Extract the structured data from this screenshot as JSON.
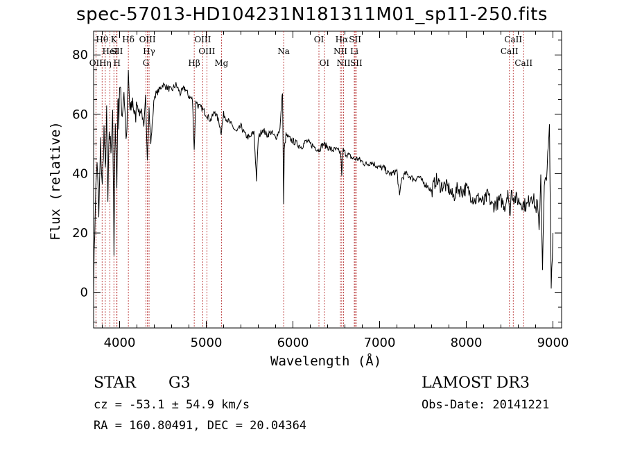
{
  "chart_data": {
    "type": "line",
    "title": "spec-57013-HD104231N181311M01_sp11-250.fits",
    "xlabel": "Wavelength (Å)",
    "ylabel": "Flux (relative)",
    "xlim": [
      3700,
      9100
    ],
    "ylim": [
      -12,
      88
    ],
    "xticks": [
      4000,
      5000,
      6000,
      7000,
      8000,
      9000
    ],
    "yticks": [
      0,
      20,
      40,
      60,
      80
    ],
    "series": [
      {
        "name": "flux",
        "x": [
          3700,
          3720,
          3740,
          3760,
          3780,
          3800,
          3820,
          3835,
          3850,
          3865,
          3880,
          3900,
          3920,
          3935,
          3950,
          3968,
          3980,
          3990,
          4000,
          4030,
          4050,
          4080,
          4101,
          4120,
          4150,
          4180,
          4200,
          4230,
          4250,
          4280,
          4300,
          4320,
          4340,
          4360,
          4400,
          4450,
          4500,
          4550,
          4600,
          4650,
          4700,
          4750,
          4800,
          4840,
          4861,
          4880,
          4900,
          4950,
          5000,
          5050,
          5100,
          5150,
          5172,
          5200,
          5250,
          5300,
          5350,
          5400,
          5450,
          5500,
          5550,
          5580,
          5600,
          5650,
          5700,
          5750,
          5800,
          5850,
          5880,
          5893,
          5900,
          5920,
          5950,
          6000,
          6050,
          6100,
          6150,
          6200,
          6250,
          6300,
          6350,
          6400,
          6450,
          6500,
          6550,
          6563,
          6580,
          6600,
          6650,
          6700,
          6750,
          6800,
          6850,
          6900,
          6950,
          7000,
          7050,
          7100,
          7150,
          7200,
          7230,
          7250,
          7300,
          7350,
          7400,
          7450,
          7500,
          7550,
          7600,
          7650,
          7700,
          7750,
          7800,
          7850,
          7900,
          7950,
          8000,
          8050,
          8100,
          8150,
          8200,
          8250,
          8300,
          8350,
          8400,
          8450,
          8480,
          8500,
          8520,
          8550,
          8600,
          8650,
          8700,
          8750,
          8780,
          8800,
          8820,
          8840,
          8860,
          8880,
          8900,
          8920,
          8940,
          8960,
          8980,
          9000
        ],
        "y": [
          2,
          30,
          45,
          25,
          50,
          35,
          55,
          40,
          60,
          30,
          55,
          48,
          62,
          12,
          60,
          35,
          67,
          58,
          70,
          60,
          68,
          50,
          74,
          60,
          65,
          58,
          64,
          60,
          62,
          55,
          66,
          45,
          62,
          50,
          66,
          68,
          70,
          69,
          68,
          70,
          67,
          69,
          66,
          65,
          48,
          65,
          63,
          62,
          60,
          58,
          61,
          57,
          54,
          60,
          58,
          56,
          54,
          56,
          53,
          52,
          54,
          38,
          52,
          55,
          53,
          54,
          52,
          55,
          68,
          30,
          48,
          53,
          52,
          51,
          50,
          49,
          51,
          50,
          49,
          48,
          50,
          49,
          48,
          48,
          47,
          40,
          48,
          47,
          46,
          45,
          45,
          44,
          43,
          44,
          43,
          42,
          42,
          40,
          40,
          41,
          32,
          38,
          40,
          39,
          38,
          39,
          37,
          36,
          34,
          38,
          36,
          36,
          35,
          32,
          35,
          34,
          35,
          33,
          31,
          32,
          30,
          33,
          29,
          30,
          31,
          29,
          35,
          25,
          34,
          32,
          31,
          30,
          29,
          33,
          31,
          28,
          30,
          20,
          40,
          8,
          35,
          38,
          45,
          55,
          2,
          20
        ]
      }
    ],
    "lines": [
      {
        "name": "Hθ",
        "wave": 3798,
        "row": 1
      },
      {
        "name": "OII",
        "wave": 3727,
        "row": 3
      },
      {
        "name": "Hη",
        "wave": 3835,
        "row": 3
      },
      {
        "name": "HeI",
        "wave": 3889,
        "row": 2
      },
      {
        "name": "K",
        "wave": 3934,
        "row": 1
      },
      {
        "name": "SII",
        "wave": 3968,
        "row": 2
      },
      {
        "name": "H",
        "wave": 3970,
        "row": 3
      },
      {
        "name": "Hδ",
        "wave": 4101,
        "row": 1
      },
      {
        "name": "OIII",
        "wave": 4321,
        "row": 1
      },
      {
        "name": "Hγ",
        "wave": 4340,
        "row": 2
      },
      {
        "name": "G",
        "wave": 4304,
        "row": 3
      },
      {
        "name": "OIII",
        "wave": 4959,
        "row": 1
      },
      {
        "name": "OIII",
        "wave": 5007,
        "row": 2
      },
      {
        "name": "Hβ",
        "wave": 4861,
        "row": 3
      },
      {
        "name": "Mg",
        "wave": 5175,
        "row": 3
      },
      {
        "name": "Na",
        "wave": 5893,
        "row": 2
      },
      {
        "name": "OI",
        "wave": 6300,
        "row": 1
      },
      {
        "name": "OI",
        "wave": 6363,
        "row": 3
      },
      {
        "name": "Hα",
        "wave": 6563,
        "row": 1
      },
      {
        "name": "NII",
        "wave": 6548,
        "row": 2
      },
      {
        "name": "NII",
        "wave": 6584,
        "row": 3
      },
      {
        "name": "SII",
        "wave": 6717,
        "row": 1
      },
      {
        "name": "Li",
        "wave": 6708,
        "row": 2
      },
      {
        "name": "SII",
        "wave": 6731,
        "row": 3
      },
      {
        "name": "CaII",
        "wave": 8542,
        "row": 1
      },
      {
        "name": "CaII",
        "wave": 8498,
        "row": 2
      },
      {
        "name": "CaII",
        "wave": 8662,
        "row": 3
      }
    ]
  },
  "info": {
    "object_class": "STAR",
    "subclass": "G3",
    "survey": "LAMOST DR3",
    "cz": "cz = -53.1 ± 54.9 km/s",
    "obs_date": "Obs-Date: 20141221",
    "coords": "RA = 160.80491, DEC =  20.04364"
  },
  "colors": {
    "spectrum": "#000000",
    "line_marker": "#b22222",
    "axis": "#000000"
  }
}
